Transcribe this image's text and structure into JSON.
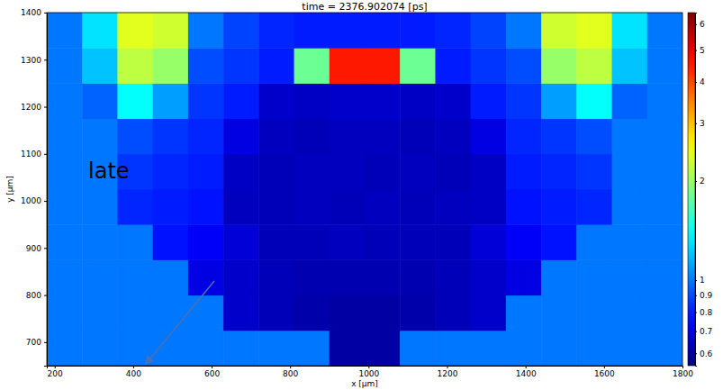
{
  "chart_data": {
    "type": "heatmap",
    "title": "time = 2376.902074 [ps]",
    "x_label": "x [μm]",
    "y_label": "y [μm]",
    "annotation": "late",
    "xlim": [
      180,
      1800
    ],
    "ylim": [
      650,
      1400
    ],
    "xticks": [
      200,
      400,
      600,
      800,
      1000,
      1200,
      1400,
      1600,
      1800
    ],
    "yticks": [
      700,
      800,
      900,
      1000,
      1100,
      1200,
      1300,
      1400
    ],
    "x_edges": [
      180,
      270,
      360,
      450,
      540,
      630,
      720,
      810,
      900,
      990,
      1080,
      1170,
      1260,
      1350,
      1440,
      1530,
      1620,
      1710,
      1800
    ],
    "y_edges": [
      650,
      725,
      800,
      875,
      950,
      1025,
      1100,
      1175,
      1250,
      1325,
      1400
    ],
    "cells": [
      [
        1,
        1,
        1,
        1,
        1,
        1,
        1,
        1,
        0.6,
        0.6,
        1,
        1,
        1,
        1,
        1,
        1,
        1,
        1
      ],
      [
        1,
        1,
        1,
        1,
        1,
        0.66,
        0.63,
        0.61,
        0.6,
        0.6,
        0.61,
        0.63,
        0.66,
        1,
        1,
        1,
        1,
        1
      ],
      [
        1,
        1,
        1,
        1,
        0.7,
        0.66,
        0.63,
        0.62,
        0.62,
        0.62,
        0.62,
        0.63,
        0.66,
        0.7,
        1,
        1,
        1,
        1
      ],
      [
        1,
        1,
        1,
        0.78,
        0.74,
        0.68,
        0.63,
        0.63,
        0.64,
        0.63,
        0.63,
        0.63,
        0.68,
        0.74,
        0.78,
        1,
        1,
        1
      ],
      [
        1,
        1,
        0.82,
        0.8,
        0.78,
        0.64,
        0.63,
        0.64,
        0.63,
        0.64,
        0.63,
        0.64,
        0.65,
        0.78,
        0.8,
        0.82,
        1,
        1
      ],
      [
        1,
        1,
        0.85,
        0.82,
        0.8,
        0.65,
        0.63,
        0.64,
        0.64,
        0.63,
        0.64,
        0.63,
        0.65,
        0.8,
        0.82,
        0.85,
        1,
        1
      ],
      [
        1,
        1,
        0.9,
        0.85,
        0.82,
        0.7,
        0.64,
        0.63,
        0.64,
        0.64,
        0.63,
        0.64,
        0.7,
        0.82,
        0.85,
        0.9,
        1,
        1
      ],
      [
        1,
        0.95,
        1.4,
        1.1,
        0.85,
        0.8,
        0.66,
        0.65,
        0.66,
        0.66,
        0.65,
        0.66,
        0.8,
        0.85,
        1.1,
        1.4,
        0.95,
        1
      ],
      [
        1,
        1.2,
        2.2,
        2.0,
        0.9,
        0.85,
        0.8,
        1.8,
        4.5,
        4.5,
        1.8,
        0.8,
        0.85,
        0.9,
        2.0,
        2.2,
        1.2,
        1
      ],
      [
        1,
        1.3,
        2.4,
        2.3,
        1.0,
        0.88,
        0.82,
        0.8,
        0.8,
        0.8,
        0.8,
        0.82,
        0.88,
        1.0,
        2.3,
        2.4,
        1.3,
        1
      ]
    ],
    "colorbar": {
      "range": [
        0.55,
        6.5
      ],
      "ticks": [
        0.6,
        0.7,
        0.8,
        0.9,
        1,
        2,
        3,
        4,
        5,
        6
      ],
      "log": true
    }
  }
}
